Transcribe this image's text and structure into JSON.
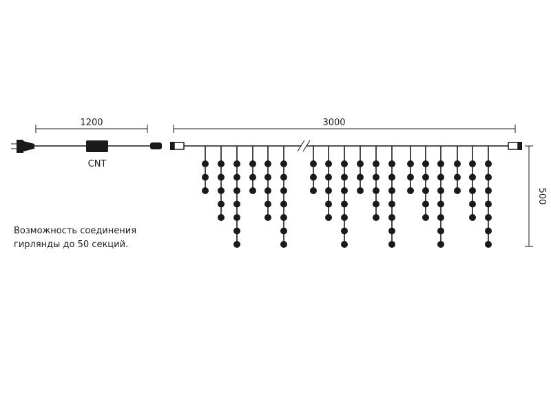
{
  "dimensions": {
    "cable_length": "1200",
    "curtain_length": "3000",
    "curtain_height": "500"
  },
  "controller_label": "CNT",
  "note": {
    "lines": [
      "Возможность соединения",
      "гирлянды до 50 секций."
    ]
  }
}
